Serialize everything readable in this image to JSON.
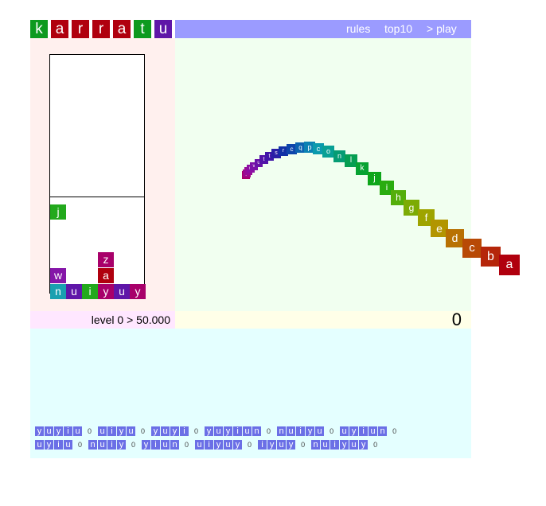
{
  "title": {
    "letters": [
      "k",
      "a",
      "r",
      "r",
      "a",
      "t",
      "u"
    ],
    "colors": [
      "#0d9a1f",
      "#b0000e",
      "#b0000e",
      "#b0000e",
      "#b0000e",
      "#0d9a1f",
      "#5f16a8"
    ]
  },
  "menu": {
    "rules": "rules",
    "top10": "top10",
    "play": "> play"
  },
  "level_text": "level 0 > 50.000",
  "score": "0",
  "well": {
    "tiles": [
      {
        "letter": "j",
        "color": "#22a91c",
        "col": 0,
        "row": 12
      },
      {
        "letter": "z",
        "color": "#a8006a",
        "col": 3,
        "row": 15
      },
      {
        "letter": "w",
        "color": "#8516a8",
        "col": 0,
        "row": 16
      },
      {
        "letter": "a",
        "color": "#b0000e",
        "col": 3,
        "row": 16
      },
      {
        "letter": "n",
        "color": "#1aa0b0",
        "col": 0,
        "row": 17
      },
      {
        "letter": "u",
        "color": "#5f16a8",
        "col": 1,
        "row": 17
      },
      {
        "letter": "i",
        "color": "#22a91c",
        "col": 2,
        "row": 17
      },
      {
        "letter": "y",
        "color": "#a8006a",
        "col": 3,
        "row": 17
      },
      {
        "letter": "u",
        "color": "#5f16a8",
        "col": 4,
        "row": 17
      },
      {
        "letter": "y",
        "color": "#a8006a",
        "col": 5,
        "row": 17
      }
    ]
  },
  "snake": [
    {
      "letter": "a",
      "color": "#b0000e"
    },
    {
      "letter": "b",
      "color": "#b5260a"
    },
    {
      "letter": "c",
      "color": "#b84a06"
    },
    {
      "letter": "d",
      "color": "#b87102"
    },
    {
      "letter": "e",
      "color": "#b29500"
    },
    {
      "letter": "f",
      "color": "#9ea400"
    },
    {
      "letter": "g",
      "color": "#7cab05"
    },
    {
      "letter": "h",
      "color": "#54ae0a"
    },
    {
      "letter": "i",
      "color": "#2aac10"
    },
    {
      "letter": "j",
      "color": "#0ea61a"
    },
    {
      "letter": "k",
      "color": "#08a232"
    },
    {
      "letter": "l",
      "color": "#069e52"
    },
    {
      "letter": "n",
      "color": "#069c74"
    },
    {
      "letter": "o",
      "color": "#08a095"
    },
    {
      "letter": "c",
      "color": "#0a9aad"
    },
    {
      "letter": "p",
      "color": "#0b82b3"
    },
    {
      "letter": "q",
      "color": "#0c63b0"
    },
    {
      "letter": "c",
      "color": "#0e45ab"
    },
    {
      "letter": "r",
      "color": "#1130a6"
    },
    {
      "letter": "s",
      "color": "#2a1ea6"
    },
    {
      "letter": "t",
      "color": "#4016a8"
    },
    {
      "letter": "t",
      "color": "#5214a8"
    },
    {
      "letter": "u",
      "color": "#6812a8"
    },
    {
      "letter": "v",
      "color": "#7b12a8"
    },
    {
      "letter": "w",
      "color": "#8c0fa4"
    },
    {
      "letter": "x",
      "color": "#980c98"
    },
    {
      "letter": "y",
      "color": "#a0088a"
    },
    {
      "letter": "z",
      "color": "#a8006a"
    }
  ],
  "words": [
    [
      {
        "word": "yuyiu",
        "score": "0"
      },
      {
        "word": "uiyu",
        "score": "0"
      },
      {
        "word": "yuyi",
        "score": "0"
      },
      {
        "word": "yuyiun",
        "score": "0"
      },
      {
        "word": "nuiyu",
        "score": "0"
      },
      {
        "word": "uyiun",
        "score": "0"
      }
    ],
    [
      {
        "word": "uyiu",
        "score": "0"
      },
      {
        "word": "nuiy",
        "score": "0"
      },
      {
        "word": "yiun",
        "score": "0"
      },
      {
        "word": "uiyuy",
        "score": "0"
      },
      {
        "word": "iyuy",
        "score": "0"
      },
      {
        "word": "nuiyuy",
        "score": "0"
      }
    ]
  ]
}
